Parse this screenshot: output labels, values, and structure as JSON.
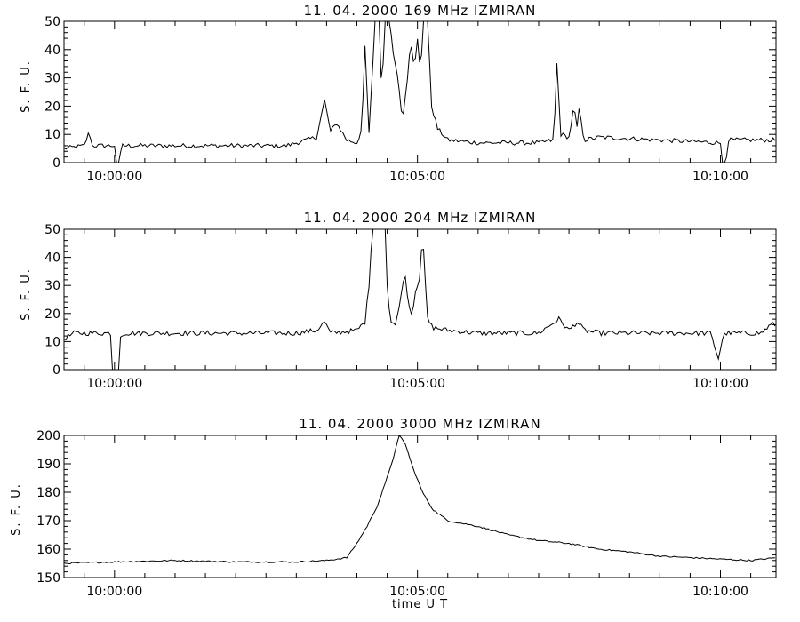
{
  "chart_data": [
    {
      "type": "line",
      "title": "11.  04.  2000    169 MHz    IZMIRAN",
      "ylabel": "S. F. U.",
      "xlabel": "",
      "ylim": [
        0,
        50
      ],
      "yticks": [
        0,
        10,
        20,
        30,
        40,
        50
      ],
      "xlim": [
        "09:59:10",
        "10:10:55"
      ],
      "xticks": [
        "10:00:00",
        "10:05:00",
        "10:10:00"
      ],
      "baseline_noise": 0.8,
      "series": [
        {
          "points": [
            [
              "09:59:10",
              5
            ],
            [
              "09:59:30",
              6
            ],
            [
              "09:59:35",
              11
            ],
            [
              "09:59:38",
              6
            ],
            [
              "10:00:00",
              6
            ],
            [
              "10:00:02",
              0
            ],
            [
              "10:00:05",
              0
            ],
            [
              "10:00:07",
              6
            ],
            [
              "10:01:00",
              6
            ],
            [
              "10:02:00",
              6
            ],
            [
              "10:02:50",
              6
            ],
            [
              "10:03:00",
              7
            ],
            [
              "10:03:20",
              9
            ],
            [
              "10:03:28",
              22
            ],
            [
              "10:03:34",
              11
            ],
            [
              "10:03:40",
              14
            ],
            [
              "10:03:50",
              8
            ],
            [
              "10:04:00",
              7
            ],
            [
              "10:04:05",
              12
            ],
            [
              "10:04:08",
              41
            ],
            [
              "10:04:12",
              10
            ],
            [
              "10:04:18",
              50
            ],
            [
              "10:04:22",
              50
            ],
            [
              "10:04:25",
              20
            ],
            [
              "10:04:27",
              50
            ],
            [
              "10:04:33",
              50
            ],
            [
              "10:04:36",
              38
            ],
            [
              "10:04:40",
              32
            ],
            [
              "10:04:45",
              15
            ],
            [
              "10:04:50",
              30
            ],
            [
              "10:04:53",
              43
            ],
            [
              "10:04:57",
              33
            ],
            [
              "10:05:00",
              44
            ],
            [
              "10:05:03",
              32
            ],
            [
              "10:05:06",
              50
            ],
            [
              "10:05:10",
              50
            ],
            [
              "10:05:14",
              20
            ],
            [
              "10:05:20",
              12
            ],
            [
              "10:05:30",
              8
            ],
            [
              "10:06:00",
              7
            ],
            [
              "10:07:00",
              7
            ],
            [
              "10:07:15",
              8
            ],
            [
              "10:07:18",
              35
            ],
            [
              "10:07:22",
              10
            ],
            [
              "10:07:30",
              9
            ],
            [
              "10:07:35",
              20
            ],
            [
              "10:07:38",
              12
            ],
            [
              "10:07:40",
              19
            ],
            [
              "10:07:45",
              8
            ],
            [
              "10:08:00",
              9
            ],
            [
              "10:09:00",
              8
            ],
            [
              "10:10:00",
              7
            ],
            [
              "10:10:02",
              0
            ],
            [
              "10:10:05",
              0
            ],
            [
              "10:10:08",
              8
            ],
            [
              "10:10:55",
              8
            ]
          ]
        }
      ]
    },
    {
      "type": "line",
      "title": "11.  04.  2000    204 MHz    IZMIRAN",
      "ylabel": "S. F. U.",
      "xlabel": "",
      "ylim": [
        0,
        50
      ],
      "yticks": [
        0,
        10,
        20,
        30,
        40,
        50
      ],
      "xlim": [
        "09:59:10",
        "10:10:55"
      ],
      "xticks": [
        "10:00:00",
        "10:05:00",
        "10:10:00"
      ],
      "baseline_noise": 0.9,
      "series": [
        {
          "points": [
            [
              "09:59:10",
              11
            ],
            [
              "09:59:20",
              13
            ],
            [
              "09:59:50",
              13
            ],
            [
              "09:59:56",
              13
            ],
            [
              "09:59:58",
              0
            ],
            [
              "10:00:04",
              0
            ],
            [
              "10:00:06",
              12
            ],
            [
              "10:00:10",
              13
            ],
            [
              "10:01:00",
              13
            ],
            [
              "10:02:00",
              13
            ],
            [
              "10:03:00",
              13
            ],
            [
              "10:03:20",
              14
            ],
            [
              "10:03:28",
              17
            ],
            [
              "10:03:34",
              13
            ],
            [
              "10:04:00",
              14
            ],
            [
              "10:04:08",
              17
            ],
            [
              "10:04:12",
              30
            ],
            [
              "10:04:15",
              50
            ],
            [
              "10:04:28",
              50
            ],
            [
              "10:04:30",
              30
            ],
            [
              "10:04:33",
              18
            ],
            [
              "10:04:38",
              16
            ],
            [
              "10:04:42",
              22
            ],
            [
              "10:04:47",
              35
            ],
            [
              "10:04:52",
              22
            ],
            [
              "10:04:55",
              20
            ],
            [
              "10:04:58",
              28
            ],
            [
              "10:05:02",
              33
            ],
            [
              "10:05:05",
              48
            ],
            [
              "10:05:10",
              18
            ],
            [
              "10:05:15",
              15
            ],
            [
              "10:05:30",
              14
            ],
            [
              "10:06:00",
              13
            ],
            [
              "10:07:00",
              13
            ],
            [
              "10:07:20",
              18
            ],
            [
              "10:07:30",
              14
            ],
            [
              "10:07:38",
              17
            ],
            [
              "10:07:45",
              14
            ],
            [
              "10:08:00",
              13
            ],
            [
              "10:09:00",
              13
            ],
            [
              "10:09:50",
              13
            ],
            [
              "10:09:58",
              4
            ],
            [
              "10:10:02",
              11
            ],
            [
              "10:10:05",
              13
            ],
            [
              "10:10:40",
              13
            ],
            [
              "10:10:50",
              16
            ],
            [
              "10:10:55",
              16
            ]
          ]
        }
      ]
    },
    {
      "type": "line",
      "title": "11.  04.  2000    3000 MHz    IZMIRAN",
      "ylabel": "S. F. U.",
      "xlabel": "time   U T",
      "ylim": [
        150,
        200
      ],
      "yticks": [
        150,
        160,
        170,
        180,
        190,
        200
      ],
      "xlim": [
        "09:59:10",
        "10:10:55"
      ],
      "xticks": [
        "10:00:00",
        "10:05:00",
        "10:10:00"
      ],
      "baseline_noise": 0.25,
      "series": [
        {
          "points": [
            [
              "09:59:10",
              155
            ],
            [
              "10:00:00",
              155.5
            ],
            [
              "10:01:00",
              156
            ],
            [
              "10:02:00",
              155.5
            ],
            [
              "10:03:00",
              155.5
            ],
            [
              "10:03:30",
              156
            ],
            [
              "10:03:50",
              157
            ],
            [
              "10:04:00",
              162
            ],
            [
              "10:04:10",
              168
            ],
            [
              "10:04:20",
              175
            ],
            [
              "10:04:28",
              183
            ],
            [
              "10:04:36",
              192
            ],
            [
              "10:04:42",
              200
            ],
            [
              "10:04:48",
              197
            ],
            [
              "10:04:55",
              189
            ],
            [
              "10:05:05",
              180
            ],
            [
              "10:05:15",
              174
            ],
            [
              "10:05:30",
              170
            ],
            [
              "10:06:00",
              168
            ],
            [
              "10:06:30",
              165
            ],
            [
              "10:07:00",
              163
            ],
            [
              "10:07:30",
              162
            ],
            [
              "10:08:00",
              160
            ],
            [
              "10:08:30",
              159
            ],
            [
              "10:09:00",
              157.5
            ],
            [
              "10:09:30",
              157
            ],
            [
              "10:10:00",
              156.5
            ],
            [
              "10:10:30",
              156
            ],
            [
              "10:10:55",
              157
            ]
          ]
        }
      ]
    }
  ]
}
